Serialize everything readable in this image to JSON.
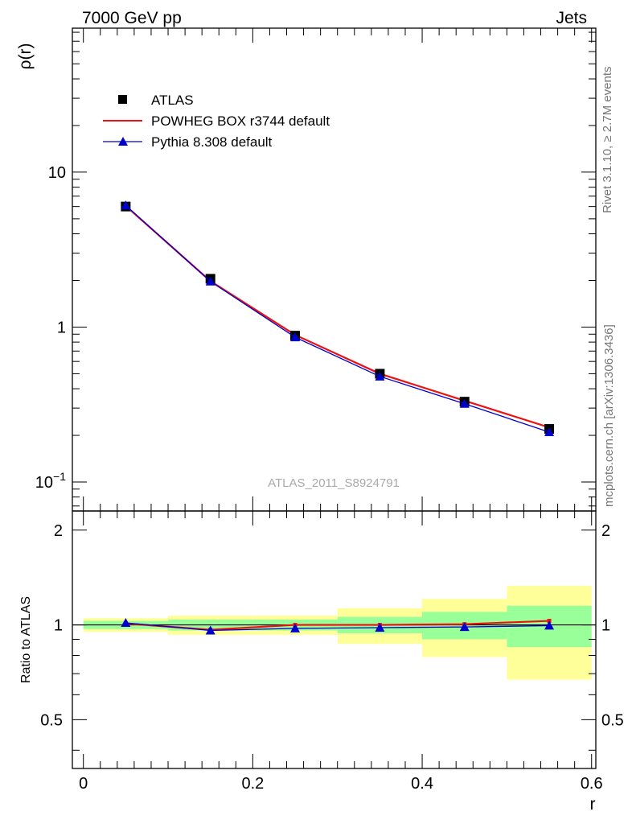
{
  "header": {
    "left": "7000 GeV pp",
    "right": "Jets"
  },
  "side_labels": {
    "rivet": "Rivet 3.1.10, ≥ 2.7M events",
    "mcplots": "mcplots.cern.ch [arXiv:1306.3436]"
  },
  "watermark": "ATLAS_2011_S8924791",
  "colors": {
    "atlas": "#000000",
    "powheg": "#ee1111",
    "pythia": "#0000cc",
    "band_inner": "#99ff99",
    "band_outer": "#ffff99"
  },
  "chart_data": [
    {
      "type": "line",
      "ylabel": "ρ(r)",
      "yscale": "log",
      "ylim": [
        0.065,
        85
      ],
      "xlim": [
        -0.013,
        0.605
      ],
      "yticks": [
        {
          "value": 0.1,
          "label": "10",
          "exp": "−1"
        },
        {
          "value": 1,
          "label": "1",
          "exp": ""
        },
        {
          "value": 10,
          "label": "10",
          "exp": ""
        }
      ],
      "legend_position": "top-left",
      "x": [
        0.05,
        0.15,
        0.25,
        0.35,
        0.45,
        0.55
      ],
      "series": [
        {
          "name": "ATLAS",
          "marker": "square",
          "values": [
            6.0,
            2.05,
            0.88,
            0.5,
            0.33,
            0.22
          ]
        },
        {
          "name": "POWHEG BOX r3744 default",
          "marker": "none",
          "values": [
            6.05,
            1.98,
            0.89,
            0.5,
            0.335,
            0.225
          ]
        },
        {
          "name": "Pythia 8.308 default",
          "marker": "triangle",
          "values": [
            6.1,
            1.97,
            0.86,
            0.48,
            0.32,
            0.21
          ]
        }
      ]
    },
    {
      "type": "line",
      "ylabel": "Ratio to ATLAS",
      "xlabel": "r",
      "ylim": [
        0.35,
        2.3
      ],
      "xlim": [
        -0.013,
        0.605
      ],
      "yticks": [
        0.5,
        1,
        2
      ],
      "xticks": [
        0,
        0.2,
        0.4,
        0.6
      ],
      "xtick_labels": [
        "0",
        "0.2",
        "0.4",
        "0.6"
      ],
      "ytick_labels": [
        "0.5",
        "1",
        "2"
      ],
      "x": [
        0.05,
        0.15,
        0.25,
        0.35,
        0.45,
        0.55
      ],
      "bin_edges": [
        0.0,
        0.1,
        0.2,
        0.3,
        0.4,
        0.5,
        0.6
      ],
      "bands": {
        "inner": [
          [
            0.97,
            1.03
          ],
          [
            0.96,
            1.04
          ],
          [
            0.96,
            1.04
          ],
          [
            0.94,
            1.06
          ],
          [
            0.9,
            1.1
          ],
          [
            0.85,
            1.15
          ]
        ],
        "outer": [
          [
            0.95,
            1.05
          ],
          [
            0.93,
            1.07
          ],
          [
            0.93,
            1.07
          ],
          [
            0.87,
            1.13
          ],
          [
            0.79,
            1.21
          ],
          [
            0.67,
            1.33
          ]
        ]
      },
      "series": [
        {
          "name": "POWHEG BOX r3744 default",
          "values": [
            1.01,
            0.965,
            1.0,
            1.0,
            1.005,
            1.03
          ]
        },
        {
          "name": "Pythia 8.308 default",
          "values": [
            1.015,
            0.96,
            0.975,
            0.98,
            0.985,
            0.995
          ]
        }
      ]
    }
  ]
}
